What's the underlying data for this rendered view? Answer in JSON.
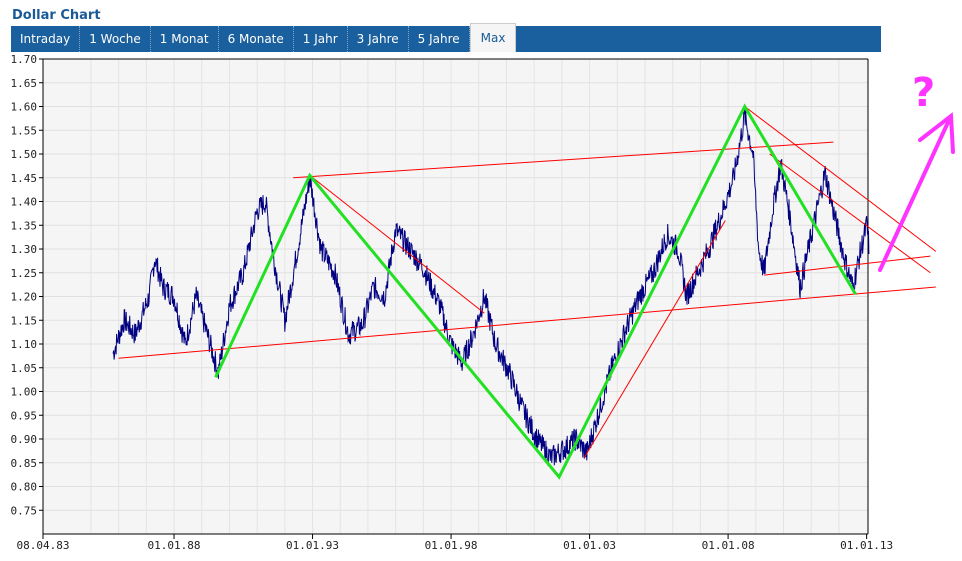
{
  "header": {
    "title": "Dollar Chart"
  },
  "tabs": [
    {
      "label": "Intraday"
    },
    {
      "label": "1 Woche"
    },
    {
      "label": "1 Monat"
    },
    {
      "label": "6 Monate"
    },
    {
      "label": "1 Jahr"
    },
    {
      "label": "3 Jahre"
    },
    {
      "label": "5 Jahre"
    },
    {
      "label": "Max",
      "active": true
    }
  ],
  "chart_data": {
    "type": "line",
    "title": "Dollar Chart",
    "ylim": [
      0.7,
      1.7
    ],
    "yticks": [
      "1.70",
      "1.65",
      "1.60",
      "1.55",
      "1.50",
      "1.45",
      "1.40",
      "1.35",
      "1.30",
      "1.25",
      "1.20",
      "1.15",
      "1.10",
      "1.05",
      "1.00",
      "0.95",
      "0.90",
      "0.85",
      "0.80",
      "0.75"
    ],
    "xlim": [
      1983.27,
      2013.05
    ],
    "xticks": [
      {
        "label": "08.04.83",
        "x": 1983.27
      },
      {
        "label": "01.01.88",
        "x": 1988
      },
      {
        "label": "01.01.93",
        "x": 1993
      },
      {
        "label": "01.01.98",
        "x": 1998
      },
      {
        "label": "01.01.03",
        "x": 2003
      },
      {
        "label": "01.01.08",
        "x": 2008
      },
      {
        "label": "01.01.13",
        "x": 2013
      }
    ],
    "grid": true,
    "series": [
      {
        "name": "Dollar",
        "color": "#000080",
        "points": [
          [
            1985.8,
            1.08
          ],
          [
            1986.2,
            1.15
          ],
          [
            1986.6,
            1.12
          ],
          [
            1987.1,
            1.2
          ],
          [
            1987.3,
            1.28
          ],
          [
            1987.6,
            1.22
          ],
          [
            1988,
            1.2
          ],
          [
            1988.4,
            1.1
          ],
          [
            1988.8,
            1.2
          ],
          [
            1989.2,
            1.12
          ],
          [
            1989.6,
            1.04
          ],
          [
            1990,
            1.18
          ],
          [
            1990.5,
            1.25
          ],
          [
            1991,
            1.38
          ],
          [
            1991.3,
            1.4
          ],
          [
            1991.6,
            1.28
          ],
          [
            1992,
            1.15
          ],
          [
            1992.4,
            1.28
          ],
          [
            1992.9,
            1.45
          ],
          [
            1993.3,
            1.3
          ],
          [
            1993.8,
            1.25
          ],
          [
            1994.3,
            1.12
          ],
          [
            1994.8,
            1.14
          ],
          [
            1995.2,
            1.22
          ],
          [
            1995.6,
            1.2
          ],
          [
            1996,
            1.34
          ],
          [
            1996.5,
            1.3
          ],
          [
            1997,
            1.26
          ],
          [
            1997.6,
            1.18
          ],
          [
            1998,
            1.1
          ],
          [
            1998.4,
            1.06
          ],
          [
            1998.8,
            1.12
          ],
          [
            1999.2,
            1.2
          ],
          [
            1999.6,
            1.1
          ],
          [
            2000.1,
            1.04
          ],
          [
            2000.6,
            0.96
          ],
          [
            2001.1,
            0.9
          ],
          [
            2001.6,
            0.86
          ],
          [
            2002.1,
            0.88
          ],
          [
            2002.5,
            0.9
          ],
          [
            2002.9,
            0.87
          ],
          [
            2003.3,
            0.95
          ],
          [
            2003.8,
            1.05
          ],
          [
            2004.3,
            1.13
          ],
          [
            2004.8,
            1.2
          ],
          [
            2005.3,
            1.25
          ],
          [
            2005.8,
            1.33
          ],
          [
            2006.2,
            1.3
          ],
          [
            2006.5,
            1.2
          ],
          [
            2006.9,
            1.25
          ],
          [
            2007.3,
            1.3
          ],
          [
            2007.8,
            1.38
          ],
          [
            2008.2,
            1.45
          ],
          [
            2008.6,
            1.58
          ],
          [
            2008.9,
            1.5
          ],
          [
            2009.1,
            1.3
          ],
          [
            2009.3,
            1.25
          ],
          [
            2009.6,
            1.38
          ],
          [
            2009.9,
            1.48
          ],
          [
            2010.2,
            1.38
          ],
          [
            2010.6,
            1.22
          ],
          [
            2010.9,
            1.3
          ],
          [
            2011.2,
            1.38
          ],
          [
            2011.5,
            1.46
          ],
          [
            2011.8,
            1.38
          ],
          [
            2012.2,
            1.28
          ],
          [
            2012.5,
            1.22
          ],
          [
            2012.8,
            1.3
          ],
          [
            2013.0,
            1.35
          ],
          [
            2013.1,
            1.3
          ]
        ]
      }
    ],
    "annotations": {
      "zigzag": {
        "color": "#22e022",
        "points": [
          [
            1989.5,
            1.03
          ],
          [
            1992.9,
            1.455
          ],
          [
            2001.9,
            0.82
          ],
          [
            2008.6,
            1.6
          ],
          [
            2012.6,
            1.205
          ]
        ]
      },
      "trendlines": {
        "color": "#ff0000",
        "lines": [
          [
            [
              1986,
              1.07
            ],
            [
              2015.5,
              1.22
            ]
          ],
          [
            [
              1992.3,
              1.45
            ],
            [
              2011.8,
              1.525
            ]
          ],
          [
            [
              1992.9,
              1.455
            ],
            [
              1999.2,
              1.165
            ]
          ],
          [
            [
              2008.6,
              1.6
            ],
            [
              2015.5,
              1.295
            ]
          ],
          [
            [
              2009.5,
              1.5
            ],
            [
              2015.3,
              1.25
            ]
          ],
          [
            [
              2002.8,
              0.86
            ],
            [
              2007.9,
              1.36
            ]
          ],
          [
            [
              2009.3,
              1.245
            ],
            [
              2015.3,
              1.285
            ]
          ]
        ]
      },
      "question": "?"
    }
  }
}
